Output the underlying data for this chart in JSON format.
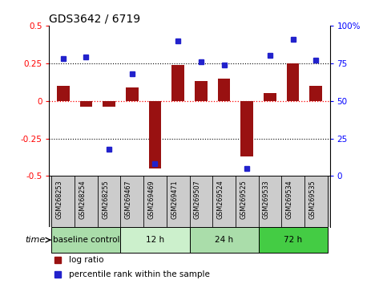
{
  "title": "GDS3642 / 6719",
  "samples": [
    "GSM268253",
    "GSM268254",
    "GSM268255",
    "GSM269467",
    "GSM269469",
    "GSM269471",
    "GSM269507",
    "GSM269524",
    "GSM269525",
    "GSM269533",
    "GSM269534",
    "GSM269535"
  ],
  "log_ratio": [
    0.1,
    -0.04,
    -0.04,
    0.09,
    -0.45,
    0.24,
    0.13,
    0.15,
    -0.37,
    0.05,
    0.25,
    0.1
  ],
  "percentile_rank": [
    78,
    79,
    18,
    68,
    8,
    90,
    76,
    74,
    5,
    80,
    91,
    77
  ],
  "groups": [
    {
      "label": "baseline control",
      "start": 0,
      "end": 3,
      "color": "#aaddaa"
    },
    {
      "label": "12 h",
      "start": 3,
      "end": 6,
      "color": "#ccf0cc"
    },
    {
      "label": "24 h",
      "start": 6,
      "end": 9,
      "color": "#aaddaa"
    },
    {
      "label": "72 h",
      "start": 9,
      "end": 12,
      "color": "#44cc44"
    }
  ],
  "bar_color": "#991111",
  "dot_color": "#2222cc",
  "ylim_left": [
    -0.5,
    0.5
  ],
  "ylim_right": [
    0,
    100
  ],
  "yticks_left": [
    -0.5,
    -0.25,
    0.0,
    0.25,
    0.5
  ],
  "yticks_left_labels": [
    "-0.5",
    "-0.25",
    "0",
    "0.25",
    "0.5"
  ],
  "yticks_right": [
    0,
    25,
    50,
    75,
    100
  ],
  "yticks_right_labels": [
    "0",
    "25",
    "50",
    "75",
    "100%"
  ],
  "hlines_dotted": [
    -0.25,
    0.25
  ],
  "hline_red": 0.0,
  "bg_color": "#ffffff",
  "legend_log_ratio": "log ratio",
  "legend_percentile": "percentile rank within the sample",
  "time_label": "time"
}
